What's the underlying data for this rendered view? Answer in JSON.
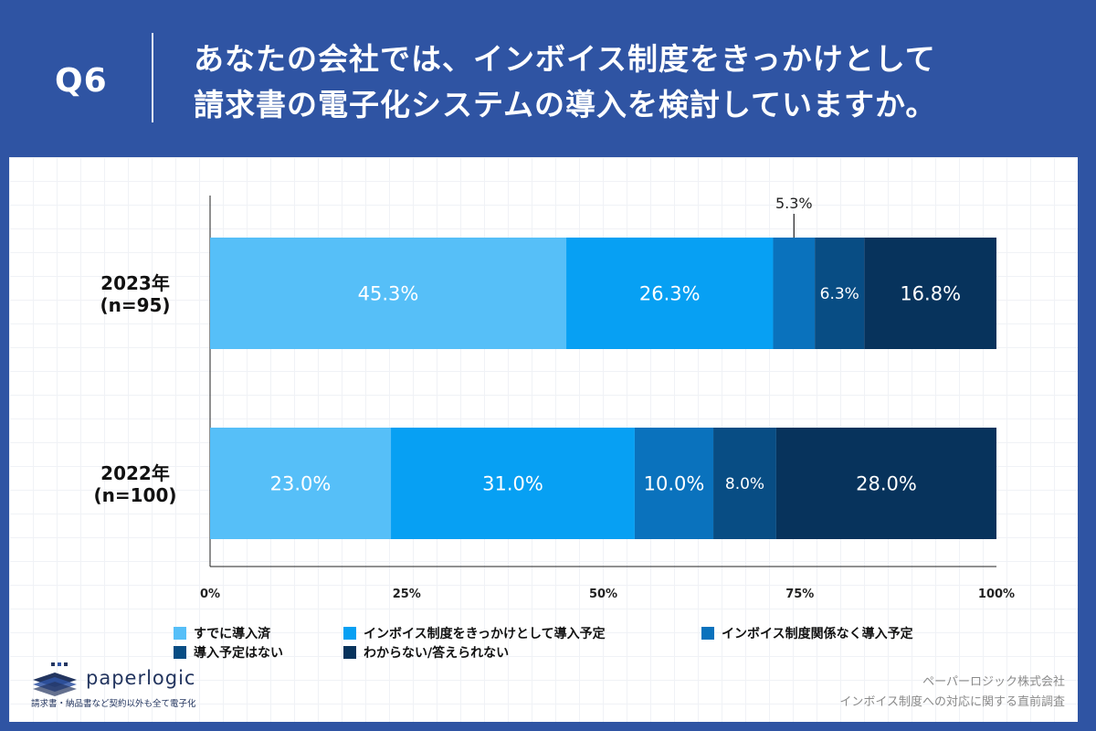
{
  "header": {
    "qnum": "Q6",
    "line1": "あなたの会社では、インボイス制度をきっかけとして",
    "line2": "請求書の電子化システムの導入を検討していますか。"
  },
  "chart_data": {
    "type": "bar",
    "orientation": "horizontal",
    "stacked": true,
    "categories": [
      "2023年\n(n=95)",
      "2022年\n(n=100)"
    ],
    "category_lines": [
      [
        "2023年",
        "(n=95)"
      ],
      [
        "2022年",
        "(n=100)"
      ]
    ],
    "series": [
      {
        "name": "すでに導入済",
        "values": [
          45.3,
          23.0
        ],
        "color": "#56bff8"
      },
      {
        "name": "インボイス制度をきっかけとして導入予定",
        "values": [
          26.3,
          31.0
        ],
        "color": "#07a0f3"
      },
      {
        "name": "インボイス制度関係なく導入予定",
        "values": [
          5.3,
          10.0
        ],
        "color": "#0a72bd"
      },
      {
        "name": "導入予定はない",
        "values": [
          6.3,
          8.0
        ],
        "color": "#084d84"
      },
      {
        "name": "わからない/答えられない",
        "values": [
          16.8,
          28.0
        ],
        "color": "#07335c"
      }
    ],
    "data_labels": [
      [
        "45.3%",
        "26.3%",
        "5.3%",
        "6.3%",
        "16.8%"
      ],
      [
        "23.0%",
        "31.0%",
        "10.0%",
        "8.0%",
        "28.0%"
      ]
    ],
    "xlim": [
      0,
      100
    ],
    "xticks": [
      "0%",
      "25%",
      "50%",
      "75%",
      "100%"
    ],
    "legend_position": "bottom",
    "grid": false
  },
  "legend": {
    "items": [
      "すでに導入済",
      "インボイス制度をきっかけとして導入予定",
      "インボイス制度関係なく導入予定",
      "導入予定はない",
      "わからない/答えられない"
    ]
  },
  "footer": {
    "logo_name": "paperlogic",
    "logo_tag": "請求書・納品書など契約以外も全て電子化",
    "source_line1": "ペーパーロジック株式会社",
    "source_line2": "インボイス制度への対応に関する直前調査"
  },
  "colors": {
    "header_bg": "#2f54a3",
    "logo": "#23355f"
  }
}
